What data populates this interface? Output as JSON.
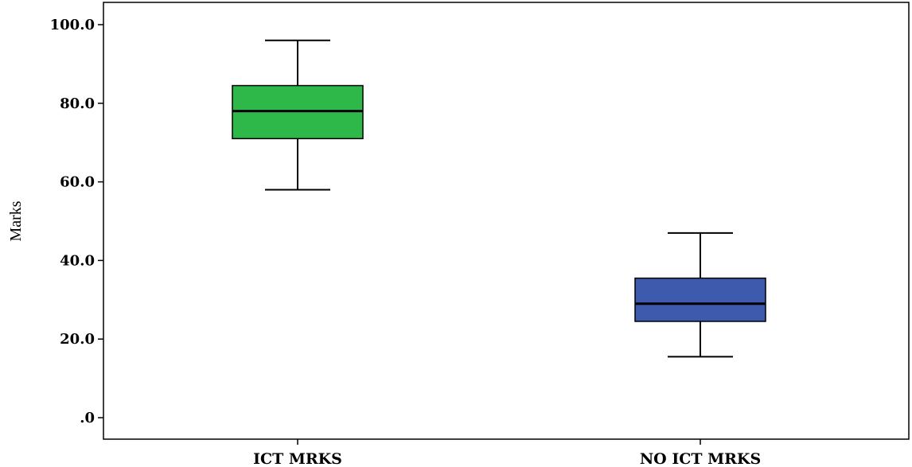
{
  "chart_data": {
    "type": "box",
    "title": "",
    "xlabel": "",
    "ylabel": "Marks",
    "ylim": [
      0,
      100
    ],
    "yticks": [
      {
        "value": 0,
        "label": ".0"
      },
      {
        "value": 20,
        "label": "20.0"
      },
      {
        "value": 40,
        "label": "40.0"
      },
      {
        "value": 60,
        "label": "60.0"
      },
      {
        "value": 80,
        "label": "80.0"
      },
      {
        "value": 100,
        "label": "100.0"
      }
    ],
    "grid": false,
    "categories": [
      "ICT MRKS",
      "NO ICT MRKS"
    ],
    "boxes": [
      {
        "category": "ICT MRKS",
        "min": 58,
        "q1": 71,
        "median": 78,
        "q3": 84.5,
        "max": 96,
        "color": "#2fb84a"
      },
      {
        "category": "NO ICT MRKS",
        "min": 15.5,
        "q1": 24.5,
        "median": 29,
        "q3": 35.5,
        "max": 47,
        "color": "#3d5aac"
      }
    ]
  }
}
